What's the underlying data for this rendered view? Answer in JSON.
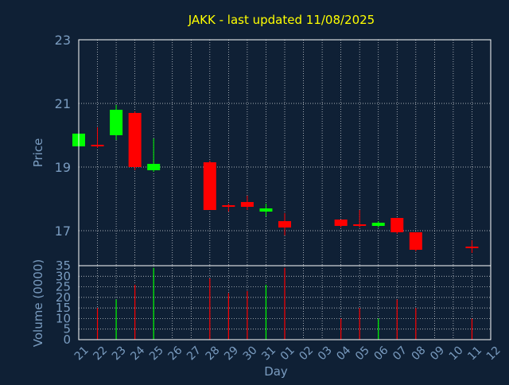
{
  "colors": {
    "background": "#0f2035",
    "frame": "#ffffff",
    "grid": "#ffffff",
    "title": "#ffff00",
    "axis_text": "#7a9cc0",
    "up": "#00ff00",
    "down": "#ff0000"
  },
  "chart_data": [
    {
      "type": "candlestick",
      "title": "JAKK - last updated 11/08/2025",
      "xlabel": "Day",
      "ylabel": "Price",
      "ylim": [
        15.9,
        23
      ],
      "yticks": [
        "17",
        "19",
        "21",
        "23"
      ],
      "x_ticks": [
        "21",
        "22",
        "23",
        "24",
        "25",
        "26",
        "27",
        "28",
        "29",
        "30",
        "31",
        "01",
        "02",
        "03",
        "04",
        "05",
        "06",
        "07",
        "08",
        "09",
        "10",
        "11",
        "12"
      ],
      "grid": true,
      "candles": [
        {
          "day": "21",
          "open": 19.65,
          "high": 20.05,
          "low": 19.6,
          "close": 20.05
        },
        {
          "day": "22",
          "open": 19.7,
          "high": 20.25,
          "low": 19.6,
          "close": 19.65
        },
        {
          "day": "23",
          "open": 20.0,
          "high": 20.95,
          "low": 19.85,
          "close": 20.8
        },
        {
          "day": "24",
          "open": 20.7,
          "high": 20.75,
          "low": 18.9,
          "close": 19.0
        },
        {
          "day": "25",
          "open": 18.9,
          "high": 19.9,
          "low": 18.85,
          "close": 19.1
        },
        {
          "day": "28",
          "open": 19.15,
          "high": 19.2,
          "low": 17.65,
          "close": 17.65
        },
        {
          "day": "29",
          "open": 17.8,
          "high": 17.85,
          "low": 17.6,
          "close": 17.75
        },
        {
          "day": "30",
          "open": 17.9,
          "high": 18.1,
          "low": 17.65,
          "close": 17.75
        },
        {
          "day": "31",
          "open": 17.6,
          "high": 17.85,
          "low": 17.45,
          "close": 17.7
        },
        {
          "day": "01",
          "open": 17.3,
          "high": 17.55,
          "low": 16.85,
          "close": 17.1
        },
        {
          "day": "04",
          "open": 17.35,
          "high": 17.35,
          "low": 17.1,
          "close": 17.15
        },
        {
          "day": "05",
          "open": 17.2,
          "high": 17.65,
          "low": 17.1,
          "close": 17.15
        },
        {
          "day": "06",
          "open": 17.15,
          "high": 17.3,
          "low": 17.1,
          "close": 17.25
        },
        {
          "day": "07",
          "open": 17.4,
          "high": 17.4,
          "low": 16.9,
          "close": 16.95
        },
        {
          "day": "08",
          "open": 16.95,
          "high": 16.95,
          "low": 16.35,
          "close": 16.4
        },
        {
          "day": "11",
          "open": 16.5,
          "high": 16.7,
          "low": 16.3,
          "close": 16.45
        }
      ]
    },
    {
      "type": "bar",
      "xlabel": "Day",
      "ylabel": "Volume (0000)",
      "ylim": [
        0,
        35
      ],
      "yticks": [
        "0",
        "5",
        "10",
        "15",
        "20",
        "25",
        "30",
        "35"
      ],
      "grid": true,
      "bars": [
        {
          "day": "22",
          "value": 15,
          "dir": "down"
        },
        {
          "day": "23",
          "value": 19,
          "dir": "up"
        },
        {
          "day": "24",
          "value": 26,
          "dir": "down"
        },
        {
          "day": "25",
          "value": 34,
          "dir": "up"
        },
        {
          "day": "28",
          "value": 29,
          "dir": "down"
        },
        {
          "day": "29",
          "value": 22,
          "dir": "down"
        },
        {
          "day": "30",
          "value": 23,
          "dir": "down"
        },
        {
          "day": "31",
          "value": 26,
          "dir": "up"
        },
        {
          "day": "01",
          "value": 34,
          "dir": "down"
        },
        {
          "day": "04",
          "value": 10,
          "dir": "down"
        },
        {
          "day": "05",
          "value": 15,
          "dir": "down"
        },
        {
          "day": "06",
          "value": 10,
          "dir": "up"
        },
        {
          "day": "07",
          "value": 19,
          "dir": "down"
        },
        {
          "day": "08",
          "value": 15,
          "dir": "down"
        },
        {
          "day": "11",
          "value": 10,
          "dir": "down"
        }
      ]
    }
  ]
}
